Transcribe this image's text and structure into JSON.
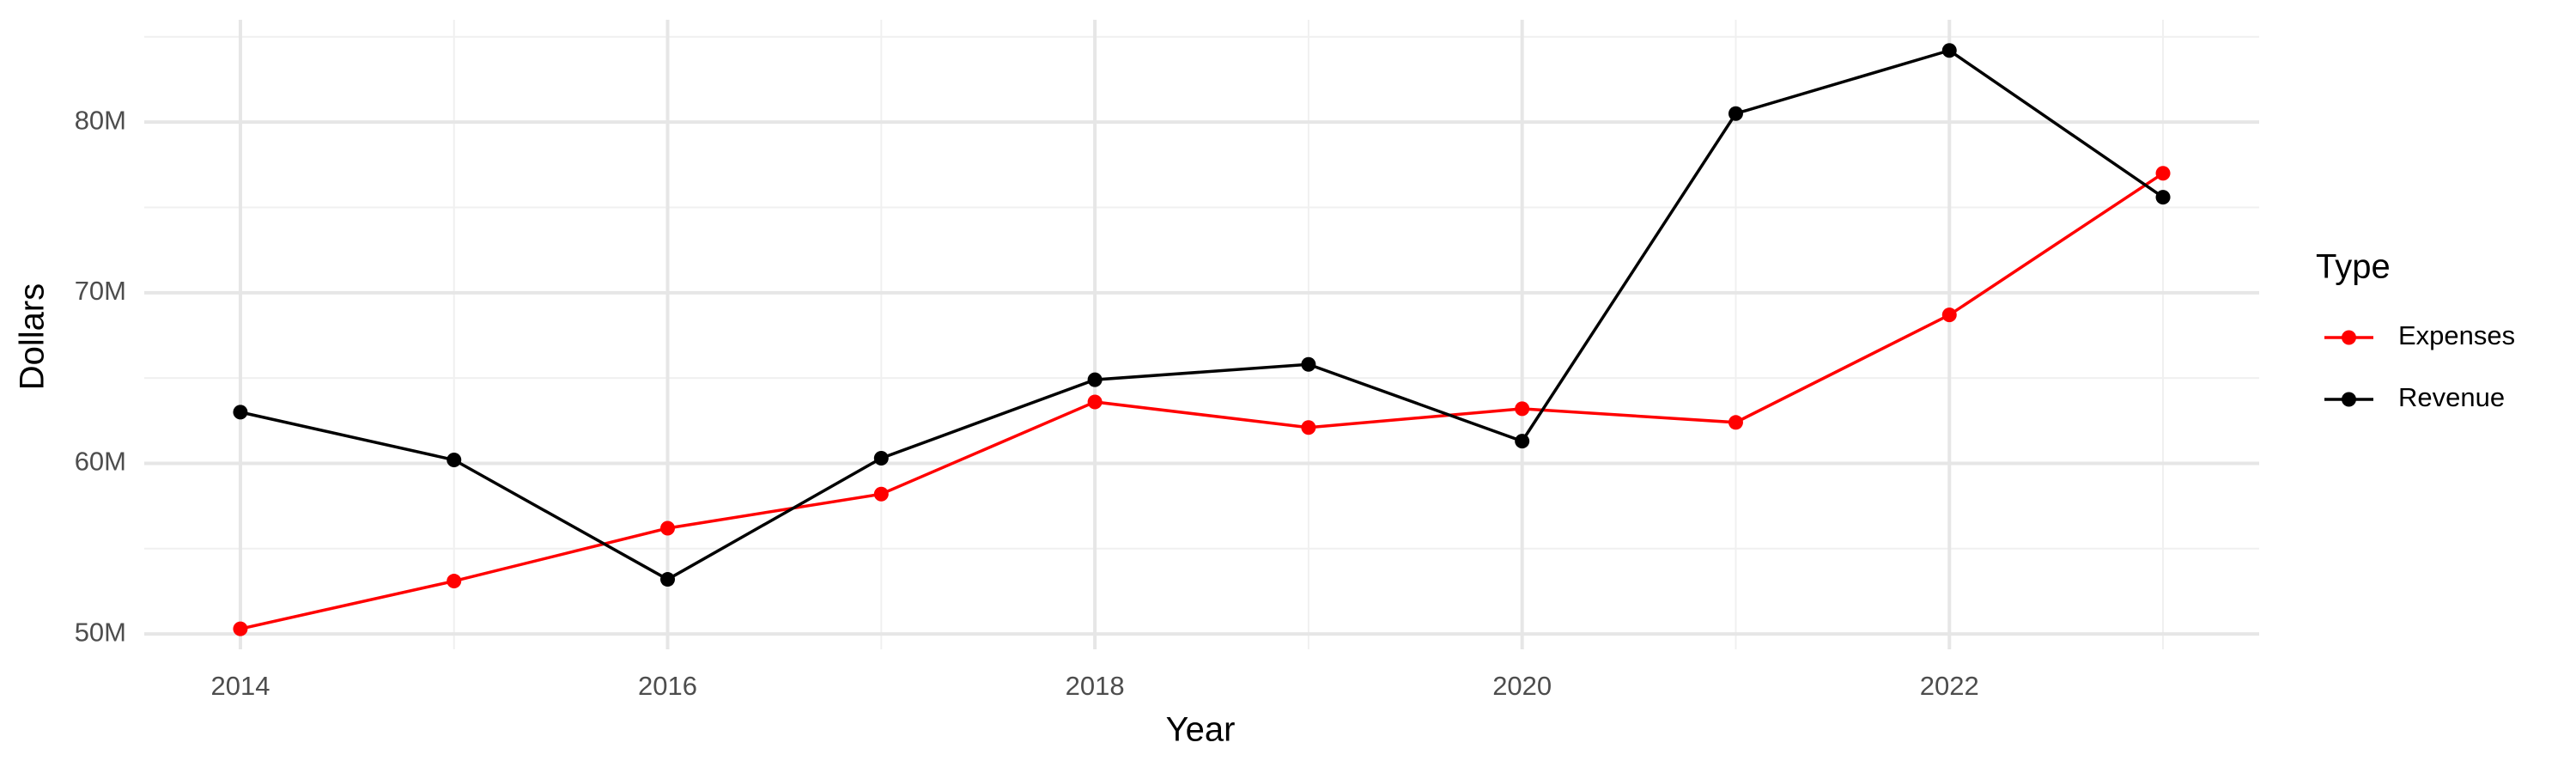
{
  "chart_data": {
    "type": "line",
    "x_label": "Year",
    "y_label": "Dollars",
    "legend_title": "Type",
    "x": [
      2014,
      2015,
      2016,
      2017,
      2018,
      2019,
      2020,
      2021,
      2022,
      2023
    ],
    "series": [
      {
        "name": "Expenses",
        "color": "#ff0000",
        "values": [
          50300000,
          53100000,
          56200000,
          58200000,
          63600000,
          62100000,
          63200000,
          62400000,
          68700000,
          77000000
        ]
      },
      {
        "name": "Revenue",
        "color": "#000000",
        "values": [
          63000000,
          60200000,
          53200000,
          60300000,
          64900000,
          65800000,
          61300000,
          80500000,
          84200000,
          75600000
        ]
      }
    ],
    "xlim": [
      2013.55,
      2023.45
    ],
    "xticks": [
      2014,
      2016,
      2018,
      2020,
      2022
    ],
    "x_minor_ticks": [
      2015,
      2017,
      2019,
      2021,
      2023
    ],
    "ylim": [
      49100000,
      86000000
    ],
    "yticks": [
      {
        "value": 50000000,
        "label": "50M"
      },
      {
        "value": 60000000,
        "label": "60M"
      },
      {
        "value": 70000000,
        "label": "70M"
      },
      {
        "value": 80000000,
        "label": "80M"
      }
    ],
    "y_minor_ticks": [
      55000000,
      65000000,
      75000000,
      85000000
    ],
    "grid": true,
    "legend": "right"
  }
}
